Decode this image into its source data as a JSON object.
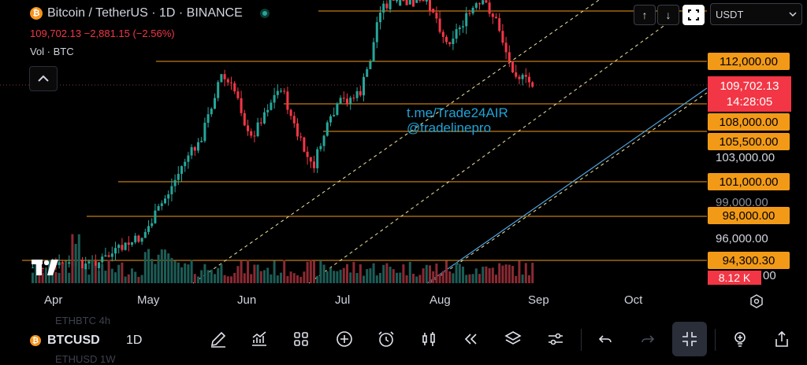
{
  "header": {
    "coin_icon": "bitcoin-icon",
    "symbol_title": "Bitcoin / TetherUS · 1D · BINANCE",
    "price_change_line": "109,702.13  −2,881.15 (−2.56%)",
    "volume_label": "Vol · BTC"
  },
  "top_controls": {
    "up_arrow": "↑",
    "down_arrow": "↓",
    "currency": "USDT"
  },
  "price_labels": {
    "p112": "112,000.00",
    "p108": "108,000.00",
    "p105": "105,500.00",
    "p103": "103,000.00",
    "p101": "101,000.00",
    "p99": "99,000.00",
    "p98": "98,000.00",
    "p96": "96,000.00",
    "p94": "94,300.30",
    "p92": "00"
  },
  "current_price": {
    "price": "109,702.13",
    "countdown": "14:28:05"
  },
  "volume_last": "8.12 K",
  "watermark": {
    "line1": "t.me/Trade24AIR",
    "line2": "@tradelinepro"
  },
  "months": [
    "Apr",
    "May",
    "Jun",
    "Jul",
    "Aug",
    "Sep",
    "Oct"
  ],
  "bottom_bar": {
    "ghost_top": "ETHBTC   4h",
    "ghost_bottom": "ETHUSD   1W",
    "symbol": "BTCUSD",
    "timeframe": "1D"
  },
  "colors": {
    "up": "#26a69a",
    "down": "#f23645",
    "level": "#f29a17",
    "watermark": "#1fa3d6",
    "trendline": "#4fa3e0"
  }
}
